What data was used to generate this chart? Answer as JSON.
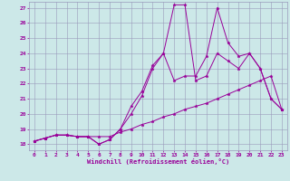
{
  "xlabel": "Windchill (Refroidissement éolien,°C)",
  "bg_color": "#cce8e8",
  "line_color": "#990099",
  "grid_color": "#9999bb",
  "xlim": [
    -0.5,
    23.5
  ],
  "ylim": [
    17.6,
    27.4
  ],
  "yticks": [
    18,
    19,
    20,
    21,
    22,
    23,
    24,
    25,
    26,
    27
  ],
  "xticks": [
    0,
    1,
    2,
    3,
    4,
    5,
    6,
    7,
    8,
    9,
    10,
    11,
    12,
    13,
    14,
    15,
    16,
    17,
    18,
    19,
    20,
    21,
    22,
    23
  ],
  "line1_x": [
    0,
    1,
    2,
    3,
    4,
    5,
    6,
    7,
    8,
    9,
    10,
    11,
    12,
    13,
    14,
    15,
    16,
    17,
    18,
    19,
    20,
    21,
    22,
    23
  ],
  "line1_y": [
    18.2,
    18.4,
    18.6,
    18.6,
    18.5,
    18.5,
    18.5,
    18.5,
    18.8,
    19.0,
    19.3,
    19.5,
    19.8,
    20.0,
    20.3,
    20.5,
    20.7,
    21.0,
    21.3,
    21.6,
    21.9,
    22.2,
    22.5,
    20.3
  ],
  "line2_x": [
    0,
    1,
    2,
    3,
    4,
    5,
    6,
    7,
    8,
    9,
    10,
    11,
    12,
    13,
    14,
    15,
    16,
    17,
    18,
    19,
    20,
    21,
    22,
    23
  ],
  "line2_y": [
    18.2,
    18.4,
    18.6,
    18.6,
    18.5,
    18.5,
    18.0,
    18.3,
    19.0,
    20.5,
    21.5,
    23.2,
    24.0,
    27.2,
    27.2,
    22.2,
    22.5,
    24.0,
    23.5,
    23.0,
    24.0,
    23.0,
    21.0,
    20.3
  ],
  "line3_x": [
    0,
    1,
    2,
    3,
    4,
    5,
    6,
    7,
    8,
    9,
    10,
    11,
    12,
    13,
    14,
    15,
    16,
    17,
    18,
    19,
    20,
    21,
    22,
    23
  ],
  "line3_y": [
    18.2,
    18.4,
    18.6,
    18.6,
    18.5,
    18.5,
    18.0,
    18.3,
    19.0,
    20.0,
    21.2,
    23.0,
    24.0,
    22.2,
    22.5,
    22.5,
    23.8,
    27.0,
    24.7,
    23.8,
    24.0,
    23.0,
    21.0,
    20.3
  ]
}
